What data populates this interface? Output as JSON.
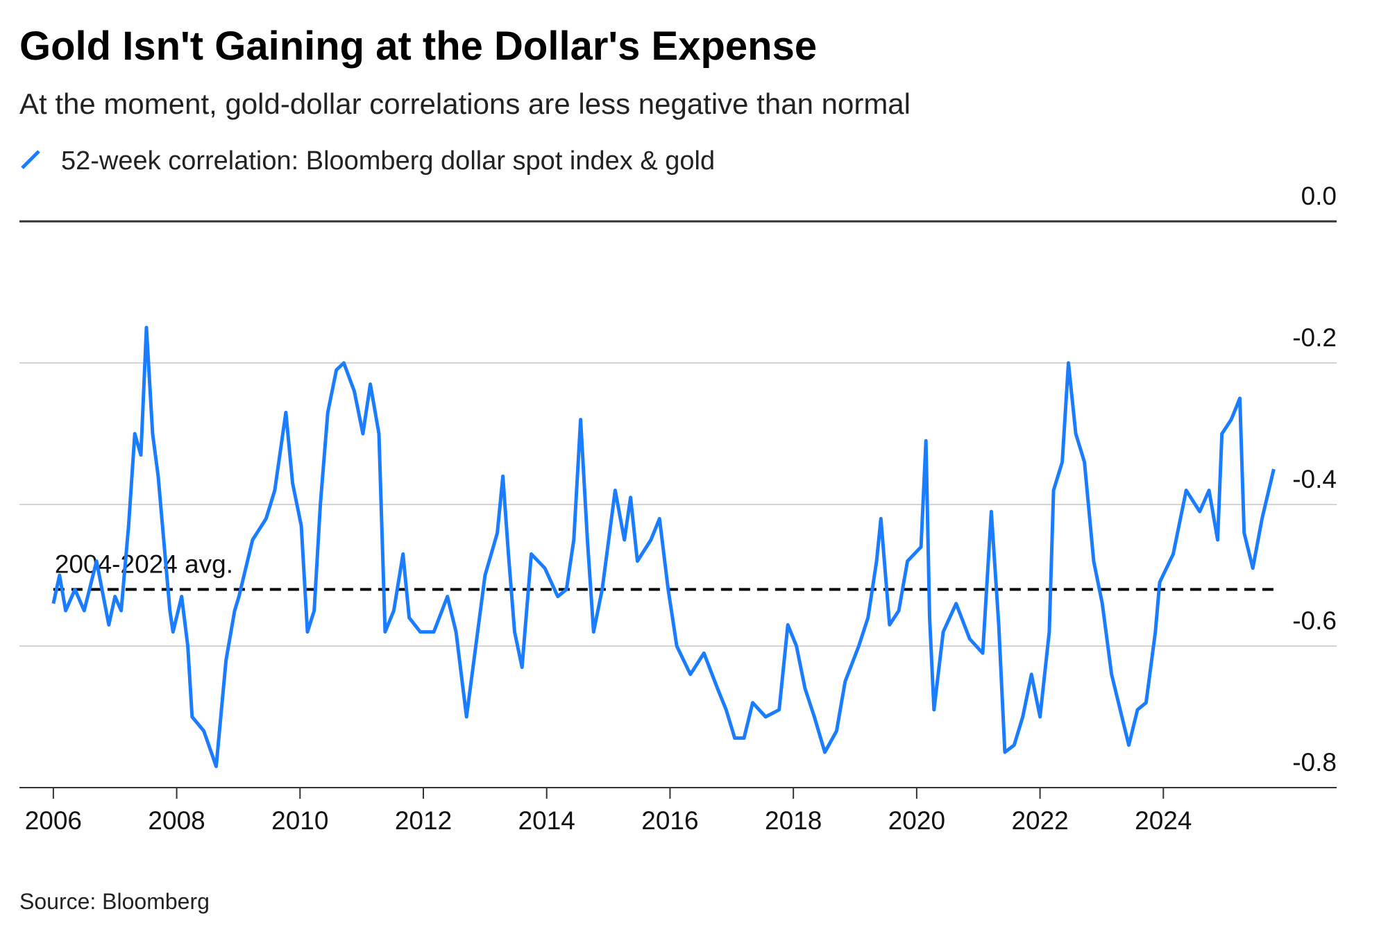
{
  "chart_data": {
    "type": "line",
    "title": "Gold Isn't Gaining at the Dollar's Expense",
    "subtitle": "At the moment, gold-dollar correlations are less negative than normal",
    "source": "Source: Bloomberg",
    "x": [
      2006.0,
      2006.1,
      2006.2,
      2006.35,
      2006.5,
      2006.7,
      2006.9,
      2007.0,
      2007.1,
      2007.22,
      2007.32,
      2007.42,
      2007.51,
      2007.61,
      2007.7,
      2007.79,
      2007.89,
      2007.94,
      2008.08,
      2008.18,
      2008.25,
      2008.44,
      2008.64,
      2008.8,
      2008.94,
      2009.01,
      2009.23,
      2009.45,
      2009.59,
      2009.77,
      2009.88,
      2010.02,
      2010.12,
      2010.23,
      2010.33,
      2010.45,
      2010.59,
      2010.71,
      2010.88,
      2011.02,
      2011.14,
      2011.28,
      2011.38,
      2011.52,
      2011.67,
      2011.77,
      2011.95,
      2012.17,
      2012.39,
      2012.53,
      2012.7,
      2012.82,
      2013.0,
      2013.1,
      2013.2,
      2013.29,
      2013.38,
      2013.48,
      2013.6,
      2013.75,
      2013.97,
      2014.18,
      2014.32,
      2014.44,
      2014.55,
      2014.66,
      2014.76,
      2014.9,
      2015.11,
      2015.26,
      2015.36,
      2015.47,
      2015.69,
      2015.83,
      2015.97,
      2016.11,
      2016.33,
      2016.55,
      2016.77,
      2016.91,
      2017.05,
      2017.2,
      2017.34,
      2017.55,
      2017.77,
      2017.91,
      2018.05,
      2018.19,
      2018.34,
      2018.51,
      2018.7,
      2018.84,
      2019.06,
      2019.21,
      2019.35,
      2019.42,
      2019.56,
      2019.71,
      2019.85,
      2020.07,
      2020.15,
      2020.21,
      2020.28,
      2020.43,
      2020.64,
      2020.86,
      2021.07,
      2021.21,
      2021.33,
      2021.43,
      2021.58,
      2021.72,
      2021.86,
      2022.0,
      2022.15,
      2022.22,
      2022.36,
      2022.46,
      2022.58,
      2022.72,
      2022.87,
      2023.01,
      2023.16,
      2023.3,
      2023.44,
      2023.58,
      2023.72,
      2023.87,
      2023.94,
      2024.16,
      2024.37,
      2024.59,
      2024.74,
      2024.88,
      2024.95,
      2025.1,
      2025.24,
      2025.31,
      2025.45,
      2025.6,
      2025.79
    ],
    "series": [
      {
        "name": "52-week correlation: Bloomberg dollar spot index & gold",
        "color": "#1a7cff",
        "values": [
          -0.54,
          -0.5,
          -0.55,
          -0.52,
          -0.55,
          -0.48,
          -0.57,
          -0.53,
          -0.55,
          -0.43,
          -0.3,
          -0.33,
          -0.15,
          -0.3,
          -0.36,
          -0.45,
          -0.55,
          -0.58,
          -0.53,
          -0.6,
          -0.7,
          -0.72,
          -0.77,
          -0.62,
          -0.55,
          -0.53,
          -0.45,
          -0.42,
          -0.38,
          -0.27,
          -0.37,
          -0.43,
          -0.58,
          -0.55,
          -0.4,
          -0.27,
          -0.21,
          -0.2,
          -0.24,
          -0.3,
          -0.23,
          -0.3,
          -0.58,
          -0.55,
          -0.47,
          -0.56,
          -0.58,
          -0.58,
          -0.53,
          -0.58,
          -0.7,
          -0.62,
          -0.5,
          -0.47,
          -0.44,
          -0.36,
          -0.47,
          -0.58,
          -0.63,
          -0.47,
          -0.49,
          -0.53,
          -0.52,
          -0.45,
          -0.28,
          -0.45,
          -0.58,
          -0.52,
          -0.38,
          -0.45,
          -0.39,
          -0.48,
          -0.45,
          -0.42,
          -0.52,
          -0.6,
          -0.64,
          -0.61,
          -0.66,
          -0.69,
          -0.73,
          -0.73,
          -0.68,
          -0.7,
          -0.69,
          -0.57,
          -0.6,
          -0.66,
          -0.7,
          -0.75,
          -0.72,
          -0.65,
          -0.6,
          -0.56,
          -0.48,
          -0.42,
          -0.57,
          -0.55,
          -0.48,
          -0.46,
          -0.31,
          -0.56,
          -0.69,
          -0.58,
          -0.54,
          -0.59,
          -0.61,
          -0.41,
          -0.57,
          -0.75,
          -0.74,
          -0.7,
          -0.64,
          -0.7,
          -0.58,
          -0.38,
          -0.34,
          -0.2,
          -0.3,
          -0.34,
          -0.48,
          -0.54,
          -0.64,
          -0.69,
          -0.74,
          -0.69,
          -0.68,
          -0.58,
          -0.51,
          -0.47,
          -0.38,
          -0.41,
          -0.38,
          -0.45,
          -0.3,
          -0.28,
          -0.25,
          -0.44,
          -0.49,
          -0.42,
          -0.35
        ]
      }
    ],
    "reference_line": {
      "label": "2004-2024 avg.",
      "value": -0.52,
      "x": [
        2006.0,
        2025.79
      ]
    },
    "xlim": [
      2005.45,
      2026.81
    ],
    "xticks": [
      2006,
      2008,
      2010,
      2012,
      2014,
      2016,
      2018,
      2020,
      2022,
      2024
    ],
    "ylim": [
      -0.8,
      0
    ],
    "yticks": [
      {
        "value": 0,
        "label": "0.0"
      },
      -0.2,
      -0.4,
      -0.6,
      -0.8
    ],
    "grid": true
  }
}
